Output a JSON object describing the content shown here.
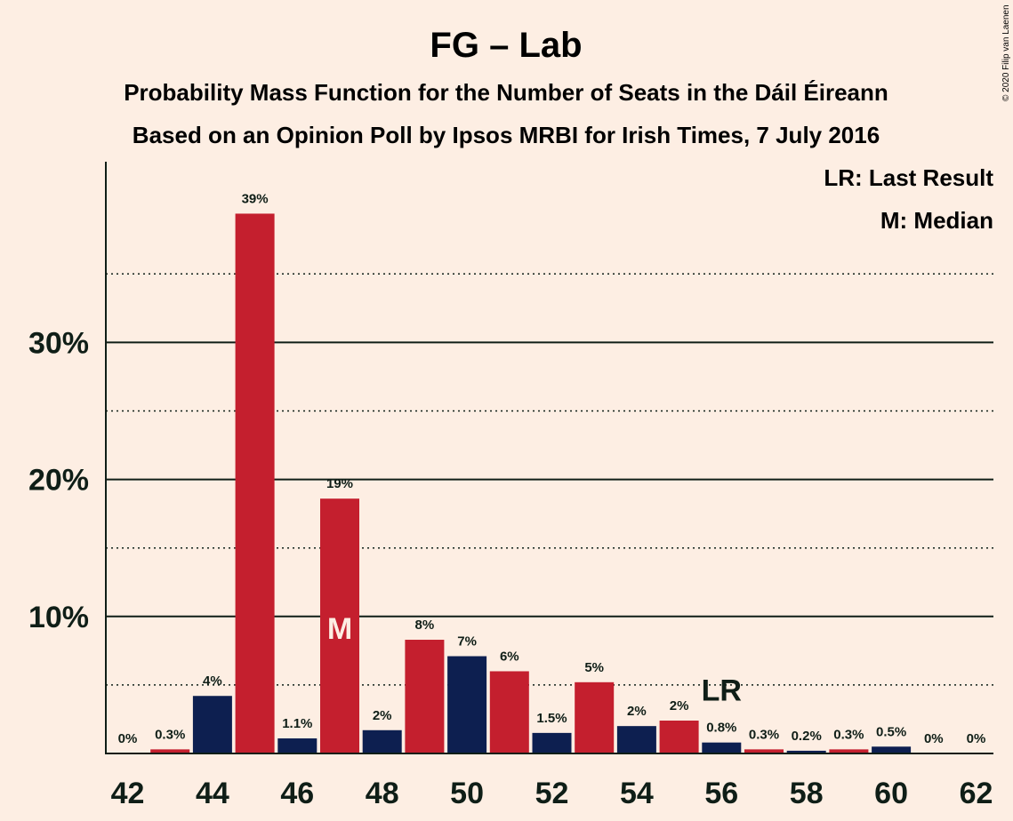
{
  "title": "FG – Lab",
  "subtitle1": "Probability Mass Function for the Number of Seats in the Dáil Éireann",
  "subtitle2": "Based on an Opinion Poll by Ipsos MRBI for Irish Times, 7 July 2016",
  "copyright": "© 2020 Filip van Laenen",
  "legend": {
    "last_result": "LR: Last Result",
    "median": "M: Median"
  },
  "markers": {
    "median_text": "M",
    "last_result_text": "LR"
  },
  "colors": {
    "background": "#fdeee3",
    "red": "#c41f2e",
    "navy": "#0d1f50",
    "text": "#0f1e17"
  },
  "chart_data": {
    "type": "bar",
    "x": [
      42,
      43,
      44,
      45,
      46,
      47,
      48,
      49,
      50,
      51,
      52,
      53,
      54,
      55,
      56,
      57,
      58,
      59,
      60,
      61,
      62
    ],
    "values": [
      0,
      0.3,
      4.2,
      39.4,
      1.1,
      18.6,
      1.7,
      8.3,
      7.1,
      6.0,
      1.5,
      5.2,
      2.0,
      2.4,
      0.8,
      0.3,
      0.2,
      0.3,
      0.5,
      0,
      0
    ],
    "labels": [
      "0%",
      "0.3%",
      "4%",
      "39%",
      "1.1%",
      "19%",
      "2%",
      "8%",
      "7%",
      "6%",
      "1.5%",
      "5%",
      "2%",
      "2%",
      "0.8%",
      "0.3%",
      "0.2%",
      "0.3%",
      "0.5%",
      "0%",
      "0%"
    ],
    "bar_colors": [
      "navy",
      "red",
      "navy",
      "red",
      "navy",
      "red",
      "navy",
      "red",
      "navy",
      "red",
      "navy",
      "red",
      "navy",
      "red",
      "navy",
      "red",
      "navy",
      "red",
      "navy",
      "red",
      "navy"
    ],
    "x_ticks": [
      42,
      44,
      46,
      48,
      50,
      52,
      54,
      56,
      58,
      60,
      62
    ],
    "y_ticks": [
      10,
      20,
      30
    ],
    "y_tick_labels": [
      "10%",
      "20%",
      "30%"
    ],
    "y_gridlines_dotted": [
      5,
      15,
      25,
      35
    ],
    "ylim": [
      0,
      43
    ],
    "median_seat": 47,
    "last_result_seat": 56
  }
}
